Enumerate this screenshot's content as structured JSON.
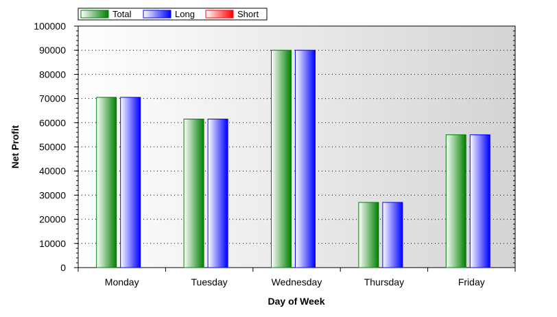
{
  "chart_data": {
    "type": "bar",
    "title": "",
    "xlabel": "Day of Week",
    "ylabel": "Net Profit",
    "categories": [
      "Monday",
      "Tuesday",
      "Wednesday",
      "Thursday",
      "Friday"
    ],
    "series": [
      {
        "name": "Total",
        "values": [
          70500,
          61500,
          90000,
          27000,
          55000
        ],
        "color": "#008000"
      },
      {
        "name": "Long",
        "values": [
          70500,
          61500,
          90000,
          27000,
          55000
        ],
        "color": "#0000ff"
      },
      {
        "name": "Short",
        "values": [
          0,
          0,
          0,
          0,
          0
        ],
        "color": "#ff0000"
      }
    ],
    "ylim": [
      0,
      100000
    ],
    "yticks": [
      "0",
      "10000",
      "20000",
      "30000",
      "40000",
      "50000",
      "60000",
      "70000",
      "80000",
      "90000",
      "100000"
    ],
    "grid": true,
    "legend_position": "top-left",
    "background": "gradient white to grey"
  }
}
